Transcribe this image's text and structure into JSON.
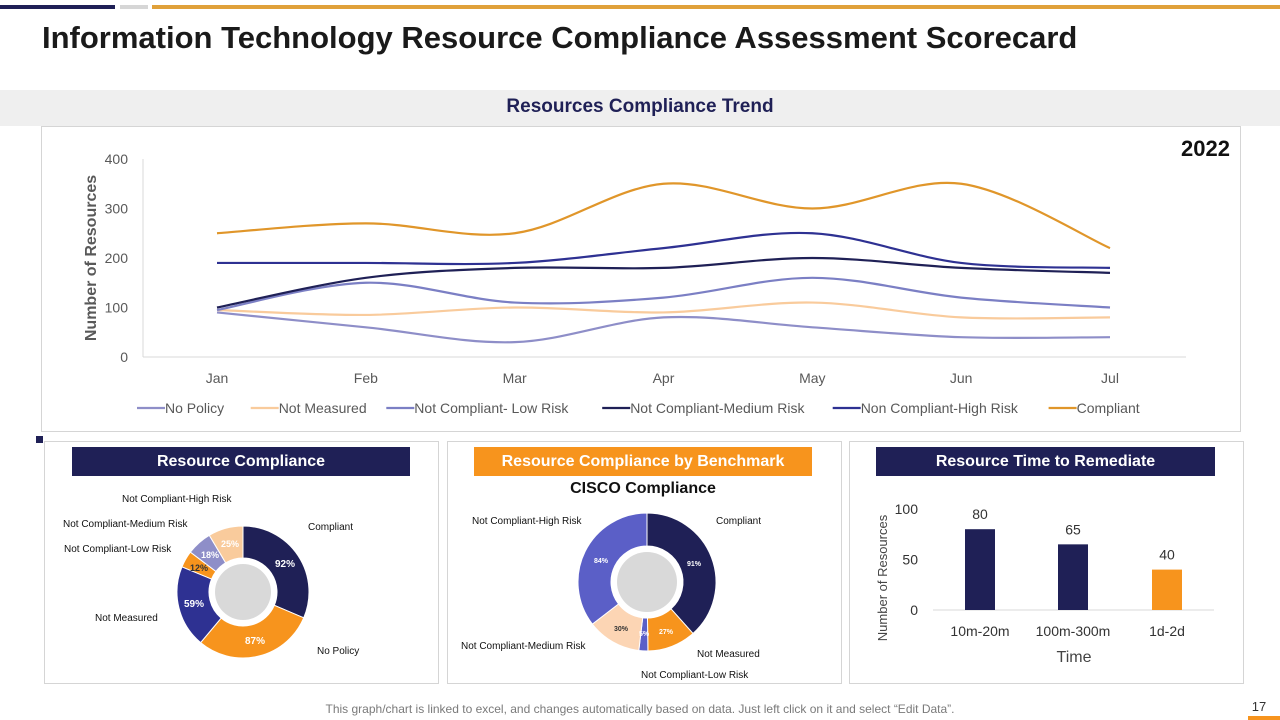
{
  "title": "Information Technology Resource Compliance Assessment Scorecard",
  "trend_section_title": "Resources Compliance Trend",
  "year_label": "2022",
  "footer_note": "This graph/chart is linked to excel, and changes automatically based on data. Just left click on it and select “Edit Data”.",
  "page_number": "17",
  "colors": {
    "dark_blue": "#1f2056",
    "orange": "#f7941d",
    "gold": "#e0a13a"
  },
  "chart_data": [
    {
      "type": "line",
      "title": "Resources Compliance Trend",
      "ylabel": "Number of Resources",
      "xlabel": "",
      "ylim": [
        0,
        400
      ],
      "yticks": [
        0,
        100,
        200,
        300,
        400
      ],
      "categories": [
        "Jan",
        "Feb",
        "Mar",
        "Apr",
        "May",
        "Jun",
        "Jul"
      ],
      "legend_position": "bottom",
      "series": [
        {
          "name": "No Policy",
          "color": "#8e8ec8",
          "values": [
            90,
            60,
            30,
            80,
            60,
            40,
            40
          ]
        },
        {
          "name": "Not Measured",
          "color": "#f9cb9c",
          "values": [
            95,
            85,
            100,
            90,
            110,
            80,
            80
          ]
        },
        {
          "name": "Not Compliant- Low Risk",
          "color": "#7b7fc4",
          "values": [
            95,
            150,
            110,
            120,
            160,
            120,
            100
          ]
        },
        {
          "name": "Not Compliant-Medium Risk",
          "color": "#1f2056",
          "values": [
            100,
            160,
            180,
            180,
            200,
            180,
            170
          ]
        },
        {
          "name": "Non Compliant-High Risk",
          "color": "#2e3192",
          "values": [
            190,
            190,
            190,
            220,
            250,
            190,
            180
          ]
        },
        {
          "name": "Compliant",
          "color": "#e0962a",
          "values": [
            250,
            270,
            250,
            350,
            300,
            350,
            220
          ]
        }
      ]
    },
    {
      "type": "pie",
      "title": "Resource Compliance",
      "categories": [
        "Compliant",
        "No Policy",
        "Not Measured",
        "Not Compliant-Low Risk",
        "Not Compliant-Medium Risk",
        "Not Compliant-High Risk"
      ],
      "values": [
        92,
        87,
        59,
        12,
        18,
        25
      ],
      "value_labels": [
        "92%",
        "87%",
        "59%",
        "12%",
        "18%",
        "25%"
      ],
      "colors": [
        "#1f2056",
        "#f7941d",
        "#2e3192",
        "#f7941d",
        "#8e8ec8",
        "#f9cb9c"
      ]
    },
    {
      "type": "pie",
      "title": "Resource Compliance by Benchmark",
      "subtitle": "CISCO Compliance",
      "categories": [
        "Compliant",
        "Not Measured",
        "Not Compliant-Low Risk",
        "Not Compliant-Medium Risk",
        "Not Compliant-High Risk"
      ],
      "values": [
        91,
        27,
        5,
        30,
        84
      ],
      "value_labels": [
        "91%",
        "27%",
        "5%",
        "30%",
        "84%"
      ],
      "colors": [
        "#1f2056",
        "#f7941d",
        "#5b5fc7",
        "#fcd5b4",
        "#5b5fc7"
      ]
    },
    {
      "type": "bar",
      "title": "Resource Time to Remediate",
      "xlabel": "Time",
      "ylabel": "Number of Resources",
      "ylim": [
        0,
        100
      ],
      "yticks": [
        0,
        50,
        100
      ],
      "categories": [
        "10m-20m",
        "100m-300m",
        "1d-2d"
      ],
      "values": [
        80,
        65,
        40
      ],
      "colors": [
        "#1f2056",
        "#1f2056",
        "#f7941d"
      ]
    }
  ]
}
